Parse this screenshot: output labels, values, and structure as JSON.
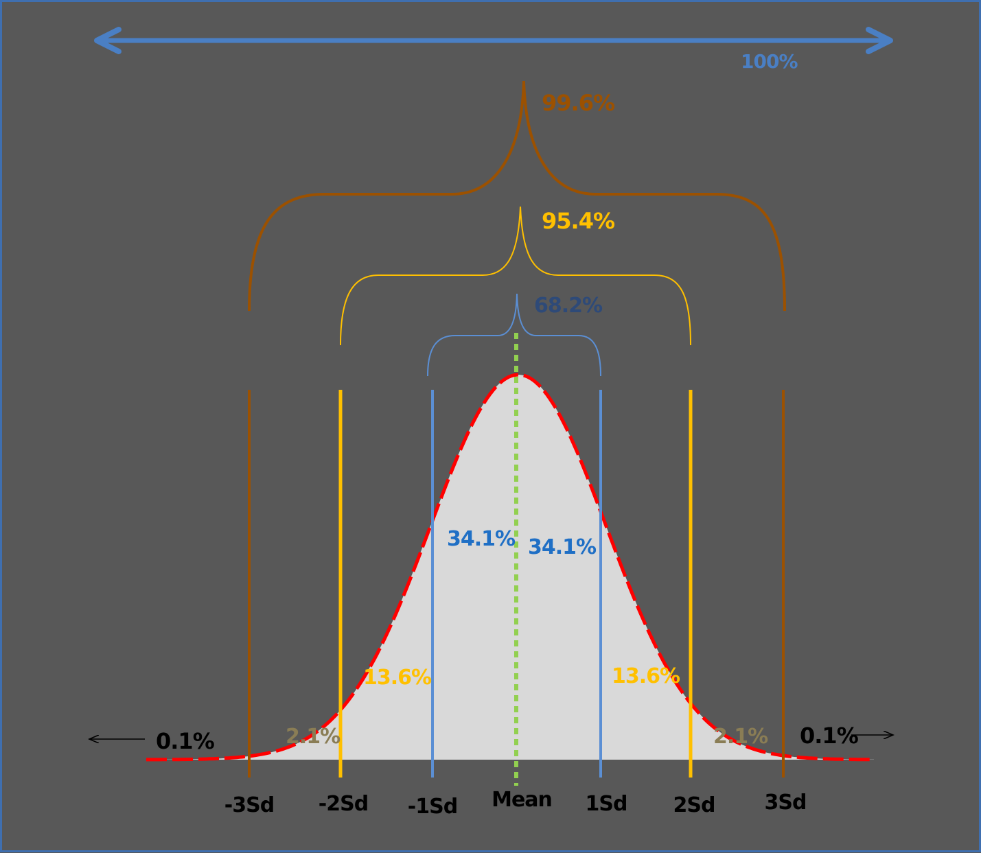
{
  "colors": {
    "background": "#585858",
    "border": "#3f6fb0",
    "curve_fill": "#d9d9d9",
    "curve_stroke": "#ff0000",
    "mean_line": "#92d050",
    "sd1": "#5b8fd4",
    "sd2": "#ffc000",
    "sd3": "#9c5100",
    "full_range_arrow": "#4a7fc4",
    "tail_text": "#000000",
    "band_2_1_text": "#8a7d55"
  },
  "full_range": {
    "label": "100%"
  },
  "brackets": [
    {
      "id": "sd3",
      "label": "99.6%"
    },
    {
      "id": "sd2",
      "label": "95.4%"
    },
    {
      "id": "sd1",
      "label": "68.2%"
    }
  ],
  "bands": [
    {
      "id": "left-tail",
      "label": "0.1%"
    },
    {
      "id": "left-3",
      "label": "2.1%"
    },
    {
      "id": "left-2",
      "label": "13.6%"
    },
    {
      "id": "left-1",
      "label": "34.1%"
    },
    {
      "id": "right-1",
      "label": "34.1%"
    },
    {
      "id": "right-2",
      "label": "13.6%"
    },
    {
      "id": "right-3",
      "label": "2.1%"
    },
    {
      "id": "right-tail",
      "label": "0.1%"
    }
  ],
  "axis": {
    "ticks": [
      "-3Sd",
      "-2Sd",
      "-1Sd",
      "Mean",
      "1Sd",
      "2Sd",
      "3Sd"
    ]
  }
}
